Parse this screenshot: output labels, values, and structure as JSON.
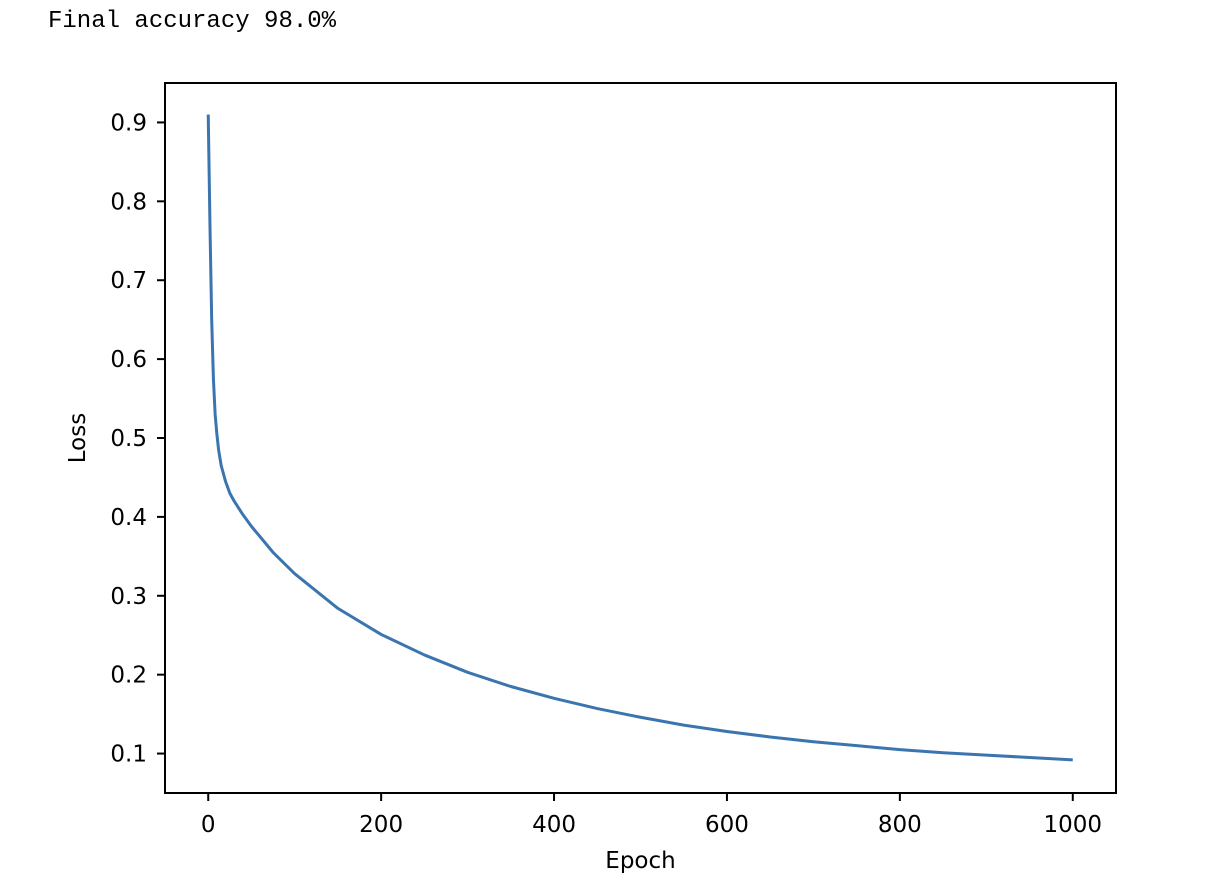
{
  "output": {
    "text": "Final accuracy 98.0%"
  },
  "chart_data": {
    "type": "line",
    "title": "",
    "xlabel": "Epoch",
    "ylabel": "Loss",
    "xlim": [
      -50,
      1050
    ],
    "ylim": [
      0.05,
      0.95
    ],
    "xticks": [
      0,
      200,
      400,
      600,
      800,
      1000
    ],
    "xtick_labels": [
      "0",
      "200",
      "400",
      "600",
      "800",
      "1000"
    ],
    "yticks": [
      0.1,
      0.2,
      0.3,
      0.4,
      0.5,
      0.6,
      0.7,
      0.8,
      0.9
    ],
    "ytick_labels": [
      "0.1",
      "0.2",
      "0.3",
      "0.4",
      "0.5",
      "0.6",
      "0.7",
      "0.8",
      "0.9"
    ],
    "grid": false,
    "line_color": "#3b75af",
    "series": [
      {
        "x": [
          0,
          2,
          4,
          6,
          8,
          10,
          12,
          15,
          20,
          25,
          30,
          40,
          50,
          75,
          100,
          150,
          200,
          250,
          300,
          350,
          400,
          450,
          500,
          550,
          600,
          650,
          700,
          750,
          800,
          850,
          900,
          950,
          1000
        ],
        "values": [
          0.91,
          0.77,
          0.65,
          0.575,
          0.53,
          0.505,
          0.485,
          0.465,
          0.445,
          0.43,
          0.42,
          0.403,
          0.388,
          0.355,
          0.328,
          0.284,
          0.251,
          0.225,
          0.203,
          0.185,
          0.17,
          0.157,
          0.146,
          0.136,
          0.128,
          0.121,
          0.115,
          0.11,
          0.105,
          0.101,
          0.098,
          0.095,
          0.092
        ]
      }
    ]
  }
}
